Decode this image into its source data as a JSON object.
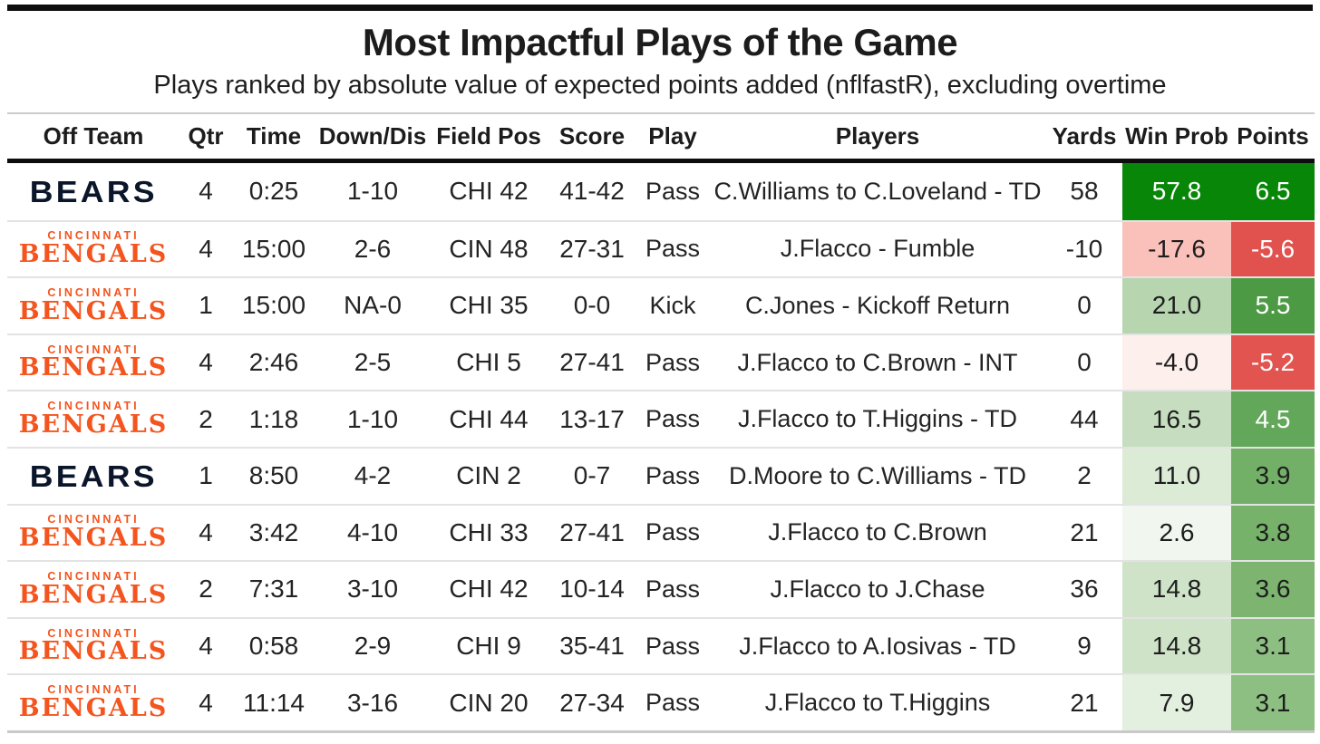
{
  "header": {
    "title": "Most Impactful Plays of the Game",
    "subtitle": "Plays ranked by absolute value of expected points added (nflfastR), excluding overtime"
  },
  "logos": {
    "bears_name": "BEARS",
    "bengals_city": "CINCINNATI",
    "bengals_name": "BENGALS"
  },
  "colors": {
    "bears_navy": "#0B162A",
    "bengals_orange": "#F4541D",
    "strong_green": "#088608",
    "strong_red": "#E1524E",
    "rule_black": "#0d0d0d",
    "row_divider": "#e3e3e3"
  },
  "table": {
    "columns": [
      "Off Team",
      "Qtr",
      "Time",
      "Down/Dis",
      "Field Pos",
      "Score",
      "Play",
      "Players",
      "Yards",
      "Win Prob",
      "Points"
    ],
    "rows": [
      {
        "team": "bears",
        "qtr": "4",
        "time": "0:25",
        "down_dis": "1-10",
        "field_pos": "CHI 42",
        "score": "41-42",
        "play": "Pass",
        "players": "C.Williams to C.Loveland - TD",
        "yards": "58",
        "win_prob": "57.8",
        "win_prob_bg": "#088608",
        "win_prob_fg": "#ffffff",
        "points": "6.5",
        "points_bg": "#088608",
        "points_fg": "#ffffff"
      },
      {
        "team": "bengals",
        "qtr": "4",
        "time": "15:00",
        "down_dis": "2-6",
        "field_pos": "CIN 48",
        "score": "27-31",
        "play": "Pass",
        "players": "J.Flacco - Fumble",
        "yards": "-10",
        "win_prob": "-17.6",
        "win_prob_bg": "#F9C1BA",
        "win_prob_fg": "#1d1d1d",
        "points": "-5.6",
        "points_bg": "#E1524E",
        "points_fg": "#ffffff"
      },
      {
        "team": "bengals",
        "qtr": "1",
        "time": "15:00",
        "down_dis": "NA-0",
        "field_pos": "CHI 35",
        "score": "0-0",
        "play": "Kick",
        "players": "C.Jones - Kickoff Return",
        "yards": "0",
        "win_prob": "21.0",
        "win_prob_bg": "#B7D5AF",
        "win_prob_fg": "#1d1d1d",
        "points": "5.5",
        "points_bg": "#4C9A44",
        "points_fg": "#ffffff"
      },
      {
        "team": "bengals",
        "qtr": "4",
        "time": "2:46",
        "down_dis": "2-5",
        "field_pos": "CHI 5",
        "score": "27-41",
        "play": "Pass",
        "players": "J.Flacco to C.Brown - INT",
        "yards": "0",
        "win_prob": "-4.0",
        "win_prob_bg": "#FDEFEB",
        "win_prob_fg": "#1d1d1d",
        "points": "-5.2",
        "points_bg": "#E2544F",
        "points_fg": "#ffffff"
      },
      {
        "team": "bengals",
        "qtr": "2",
        "time": "1:18",
        "down_dis": "1-10",
        "field_pos": "CHI 44",
        "score": "13-17",
        "play": "Pass",
        "players": "J.Flacco to T.Higgins - TD",
        "yards": "44",
        "win_prob": "16.5",
        "win_prob_bg": "#C6DEBF",
        "win_prob_fg": "#1d1d1d",
        "points": "4.5",
        "points_bg": "#63A85A",
        "points_fg": "#ffffff"
      },
      {
        "team": "bears",
        "qtr": "1",
        "time": "8:50",
        "down_dis": "4-2",
        "field_pos": "CIN 2",
        "score": "0-7",
        "play": "Pass",
        "players": "D.Moore to C.Williams - TD",
        "yards": "2",
        "win_prob": "11.0",
        "win_prob_bg": "#DBEBD6",
        "win_prob_fg": "#1d1d1d",
        "points": "3.9",
        "points_bg": "#73B067",
        "points_fg": "#1d1d1d"
      },
      {
        "team": "bengals",
        "qtr": "4",
        "time": "3:42",
        "down_dis": "4-10",
        "field_pos": "CHI 33",
        "score": "27-41",
        "play": "Pass",
        "players": "J.Flacco to C.Brown",
        "yards": "21",
        "win_prob": "2.6",
        "win_prob_bg": "#F1F7EE",
        "win_prob_fg": "#1d1d1d",
        "points": "3.8",
        "points_bg": "#76B269",
        "points_fg": "#1d1d1d"
      },
      {
        "team": "bengals",
        "qtr": "2",
        "time": "7:31",
        "down_dis": "3-10",
        "field_pos": "CHI 42",
        "score": "10-14",
        "play": "Pass",
        "players": "J.Flacco to J.Chase",
        "yards": "36",
        "win_prob": "14.8",
        "win_prob_bg": "#CEE3C7",
        "win_prob_fg": "#1d1d1d",
        "points": "3.6",
        "points_bg": "#7CB470",
        "points_fg": "#1d1d1d"
      },
      {
        "team": "bengals",
        "qtr": "4",
        "time": "0:58",
        "down_dis": "2-9",
        "field_pos": "CHI 9",
        "score": "35-41",
        "play": "Pass",
        "players": "J.Flacco to A.Iosivas - TD",
        "yards": "9",
        "win_prob": "14.8",
        "win_prob_bg": "#CEE3C7",
        "win_prob_fg": "#1d1d1d",
        "points": "3.1",
        "points_bg": "#8EBF82",
        "points_fg": "#1d1d1d"
      },
      {
        "team": "bengals",
        "qtr": "4",
        "time": "11:14",
        "down_dis": "3-16",
        "field_pos": "CIN 20",
        "score": "27-34",
        "play": "Pass",
        "players": "J.Flacco to T.Higgins",
        "yards": "21",
        "win_prob": "7.9",
        "win_prob_bg": "#E3F0DF",
        "win_prob_fg": "#1d1d1d",
        "points": "3.1",
        "points_bg": "#8EBF82",
        "points_fg": "#1d1d1d"
      }
    ]
  },
  "chart_data": {
    "type": "table",
    "title": "Most Impactful Plays of the Game",
    "subtitle": "Plays ranked by absolute value of expected points added (nflfastR), excluding overtime",
    "columns": [
      "Off Team",
      "Qtr",
      "Time",
      "Down/Dis",
      "Field Pos",
      "Score",
      "Play",
      "Players",
      "Yards",
      "Win Prob",
      "Points"
    ],
    "rows": [
      [
        "Bears",
        4,
        "0:25",
        "1-10",
        "CHI 42",
        "41-42",
        "Pass",
        "C.Williams to C.Loveland - TD",
        58,
        57.8,
        6.5
      ],
      [
        "Bengals",
        4,
        "15:00",
        "2-6",
        "CIN 48",
        "27-31",
        "Pass",
        "J.Flacco - Fumble",
        -10,
        -17.6,
        -5.6
      ],
      [
        "Bengals",
        1,
        "15:00",
        "NA-0",
        "CHI 35",
        "0-0",
        "Kick",
        "C.Jones - Kickoff Return",
        0,
        21.0,
        5.5
      ],
      [
        "Bengals",
        4,
        "2:46",
        "2-5",
        "CHI 5",
        "27-41",
        "Pass",
        "J.Flacco to C.Brown - INT",
        0,
        -4.0,
        -5.2
      ],
      [
        "Bengals",
        2,
        "1:18",
        "1-10",
        "CHI 44",
        "13-17",
        "Pass",
        "J.Flacco to T.Higgins - TD",
        44,
        16.5,
        4.5
      ],
      [
        "Bears",
        1,
        "8:50",
        "4-2",
        "CIN 2",
        "0-7",
        "Pass",
        "D.Moore to C.Williams - TD",
        2,
        11.0,
        3.9
      ],
      [
        "Bengals",
        4,
        "3:42",
        "4-10",
        "CHI 33",
        "27-41",
        "Pass",
        "J.Flacco to C.Brown",
        21,
        2.6,
        3.8
      ],
      [
        "Bengals",
        2,
        "7:31",
        "3-10",
        "CHI 42",
        "10-14",
        "Pass",
        "J.Flacco to J.Chase",
        36,
        14.8,
        3.6
      ],
      [
        "Bengals",
        4,
        "0:58",
        "2-9",
        "CHI 9",
        "35-41",
        "Pass",
        "J.Flacco to A.Iosivas - TD",
        9,
        14.8,
        3.1
      ],
      [
        "Bengals",
        4,
        "11:14",
        "3-16",
        "CIN 20",
        "27-34",
        "Pass",
        "J.Flacco to T.Higgins",
        21,
        7.9,
        3.1
      ]
    ],
    "legend_position": "none",
    "grid": false,
    "color_encoding": "Win Prob and Points cells shaded green (positive) to red (negative) by magnitude"
  }
}
